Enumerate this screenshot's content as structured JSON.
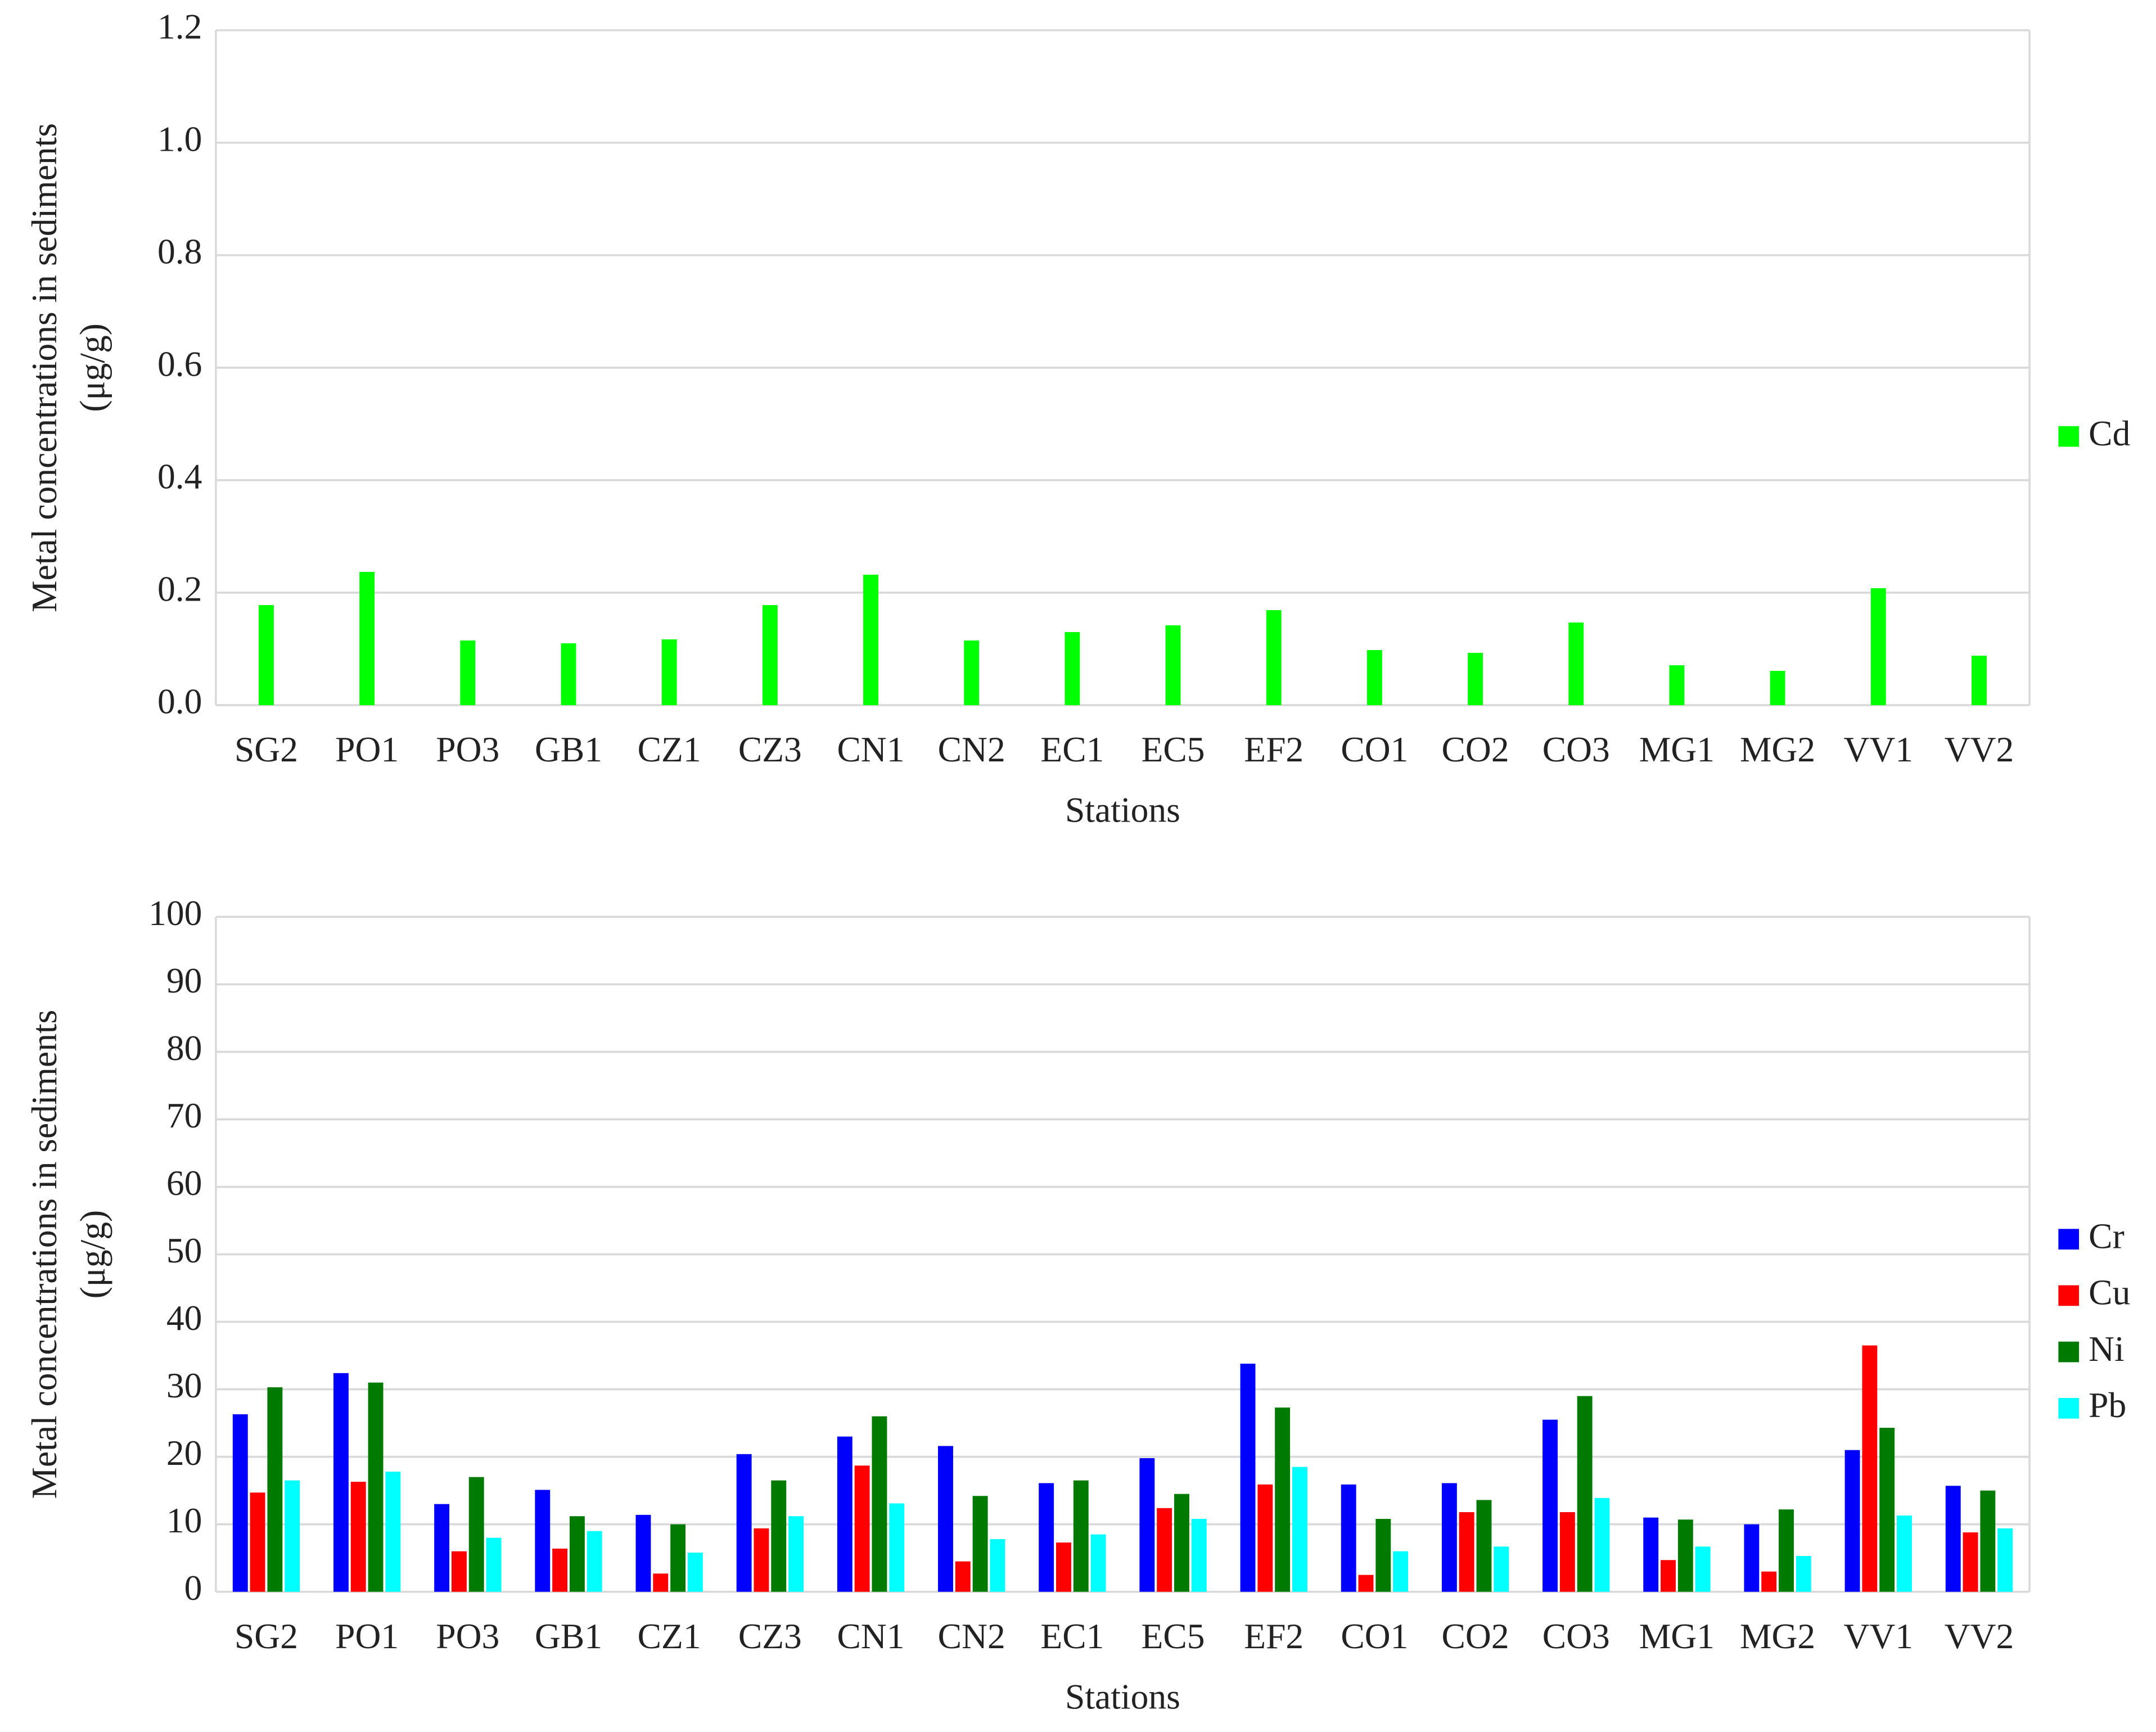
{
  "chart_data": [
    {
      "type": "bar",
      "xlabel": "Stations",
      "ylabel": [
        "Metal concentrations in sediments",
        "(μg/g)"
      ],
      "categories": [
        "SG2",
        "PO1",
        "PO3",
        "GB1",
        "CZ1",
        "CZ3",
        "CN1",
        "CN2",
        "EC1",
        "EC5",
        "EF2",
        "CO1",
        "CO2",
        "CO3",
        "MG1",
        "MG2",
        "VV1",
        "VV2"
      ],
      "series": [
        {
          "name": "Cd",
          "color": "#00ff00",
          "values": [
            0.178,
            0.237,
            0.115,
            0.11,
            0.117,
            0.178,
            0.232,
            0.115,
            0.13,
            0.142,
            0.169,
            0.098,
            0.093,
            0.147,
            0.071,
            0.061,
            0.208,
            0.088
          ]
        }
      ],
      "ylim": [
        0,
        1.2
      ],
      "yticks": [
        {
          "value": 0,
          "label": "0.0"
        },
        0.2,
        0.4,
        0.6,
        0.8,
        {
          "value": 1,
          "label": "1.0"
        },
        1.2
      ],
      "grid": true,
      "legend": "right"
    },
    {
      "type": "bar",
      "xlabel": "Stations",
      "ylabel": [
        "Metal concentrations in sediments",
        "(μg/g)"
      ],
      "categories": [
        "SG2",
        "PO1",
        "PO3",
        "GB1",
        "CZ1",
        "CZ3",
        "CN1",
        "CN2",
        "EC1",
        "EC5",
        "EF2",
        "CO1",
        "CO2",
        "CO3",
        "MG1",
        "MG2",
        "VV1",
        "VV2"
      ],
      "series": [
        {
          "name": "Cr",
          "color": "#0000ff",
          "values": [
            26.3,
            32.4,
            13,
            15.1,
            11.4,
            20.4,
            23,
            21.6,
            16.1,
            19.8,
            33.8,
            15.9,
            16.1,
            25.5,
            11,
            10,
            21,
            15.7
          ]
        },
        {
          "name": "Cu",
          "color": "#ff0000",
          "values": [
            14.7,
            16.3,
            6,
            6.4,
            2.7,
            9.4,
            18.7,
            4.5,
            7.3,
            12.4,
            15.9,
            2.5,
            11.8,
            11.8,
            4.7,
            3,
            36.5,
            8.8
          ]
        },
        {
          "name": "Ni",
          "color": "#007a00",
          "values": [
            30.3,
            31,
            17,
            11.2,
            10,
            16.5,
            26,
            14.2,
            16.5,
            14.5,
            27.3,
            10.8,
            13.6,
            29,
            10.7,
            12.2,
            24.3,
            15
          ]
        },
        {
          "name": "Pb",
          "color": "#00ffff",
          "values": [
            16.5,
            17.8,
            8,
            9,
            5.8,
            11.2,
            13.1,
            7.8,
            8.5,
            10.8,
            18.5,
            6,
            6.7,
            13.9,
            6.7,
            5.3,
            11.3,
            9.4
          ]
        }
      ],
      "ylim": [
        0,
        100
      ],
      "yticks": [
        0,
        10,
        20,
        30,
        40,
        50,
        60,
        70,
        80,
        90,
        100
      ],
      "grid": true,
      "legend": "right"
    }
  ]
}
